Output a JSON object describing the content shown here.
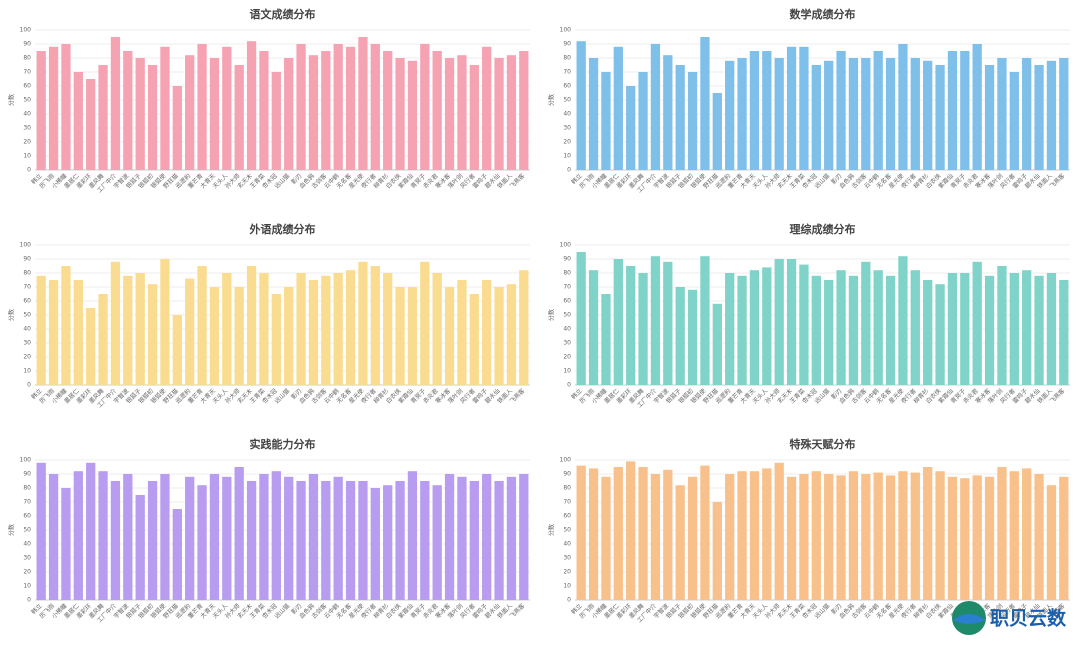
{
  "chart_data": [
    {
      "type": "bar",
      "title": "语文成绩分布",
      "y_label": "分数",
      "color": "#f5a3b3",
      "ylim": [
        0,
        100
      ],
      "yticks": [
        0,
        10,
        20,
        30,
        40,
        50,
        60,
        70,
        80,
        90,
        100
      ],
      "grid": true,
      "categories": [
        "韩立",
        "厉飞雨",
        "小稀瞳",
        "墨居仁",
        "墨彩环",
        "墨凤舞",
        "工厂中介",
        "宇智波",
        "银狐子",
        "银狐初",
        "银狐使",
        "野狂猫",
        "巡逻豹",
        "董芒青",
        "大青天",
        "天头人",
        "孙大师",
        "玄天木",
        "王青菜",
        "杏木冠",
        "远山猫",
        "影刃",
        "血色鸦",
        "古剑客",
        "云中鹤",
        "无名客",
        "星光使",
        "夜行者",
        "柳青衫",
        "白衣侠",
        "紫霞仙",
        "青冥子",
        "赤炎君",
        "寒冰客",
        "落叶剑",
        "风行者",
        "雷鸣子",
        "碧水仙",
        "铁面人",
        "飞燕客"
      ],
      "values": [
        85,
        88,
        90,
        70,
        65,
        75,
        95,
        85,
        80,
        75,
        88,
        60,
        82,
        90,
        80,
        88,
        75,
        92,
        85,
        70,
        80,
        90,
        82,
        85,
        90,
        88,
        95,
        90,
        85,
        80,
        78,
        90,
        85,
        80,
        82,
        75,
        88,
        80,
        82,
        85
      ]
    },
    {
      "type": "bar",
      "title": "数学成绩分布",
      "y_label": "分数",
      "color": "#7fc0ea",
      "ylim": [
        0,
        100
      ],
      "yticks": [
        0,
        10,
        20,
        30,
        40,
        50,
        60,
        70,
        80,
        90,
        100
      ],
      "grid": true,
      "categories": [
        "韩立",
        "厉飞雨",
        "小稀瞳",
        "墨居仁",
        "墨彩环",
        "墨凤舞",
        "工厂中介",
        "宇智波",
        "银狐子",
        "银狐初",
        "银狐使",
        "野狂猫",
        "巡逻豹",
        "董芒青",
        "大青天",
        "天头人",
        "孙大师",
        "玄天木",
        "王青菜",
        "杏木冠",
        "远山猫",
        "影刃",
        "血色鸦",
        "古剑客",
        "云中鹤",
        "无名客",
        "星光使",
        "夜行者",
        "柳青衫",
        "白衣侠",
        "紫霞仙",
        "青冥子",
        "赤炎君",
        "寒冰客",
        "落叶剑",
        "风行者",
        "雷鸣子",
        "碧水仙",
        "铁面人",
        "飞燕客"
      ],
      "values": [
        92,
        80,
        70,
        88,
        60,
        70,
        90,
        82,
        75,
        70,
        95,
        55,
        78,
        80,
        85,
        85,
        80,
        88,
        88,
        75,
        78,
        85,
        80,
        80,
        85,
        80,
        90,
        80,
        78,
        75,
        85,
        85,
        90,
        75,
        80,
        70,
        80,
        75,
        78,
        80
      ]
    },
    {
      "type": "bar",
      "title": "外语成绩分布",
      "y_label": "分数",
      "color": "#f9dc8f",
      "ylim": [
        0,
        100
      ],
      "yticks": [
        0,
        10,
        20,
        30,
        40,
        50,
        60,
        70,
        80,
        90,
        100
      ],
      "grid": true,
      "categories": [
        "韩立",
        "厉飞雨",
        "小稀瞳",
        "墨居仁",
        "墨彩环",
        "墨凤舞",
        "工厂中介",
        "宇智波",
        "银狐子",
        "银狐初",
        "银狐使",
        "野狂猫",
        "巡逻豹",
        "董芒青",
        "大青天",
        "天头人",
        "孙大师",
        "玄天木",
        "王青菜",
        "杏木冠",
        "远山猫",
        "影刃",
        "血色鸦",
        "古剑客",
        "云中鹤",
        "无名客",
        "星光使",
        "夜行者",
        "柳青衫",
        "白衣侠",
        "紫霞仙",
        "青冥子",
        "赤炎君",
        "寒冰客",
        "落叶剑",
        "风行者",
        "雷鸣子",
        "碧水仙",
        "铁面人",
        "飞燕客"
      ],
      "values": [
        78,
        75,
        85,
        75,
        55,
        65,
        88,
        78,
        80,
        72,
        90,
        50,
        76,
        85,
        70,
        80,
        70,
        85,
        80,
        65,
        70,
        80,
        75,
        78,
        80,
        82,
        88,
        85,
        80,
        70,
        70,
        88,
        80,
        70,
        75,
        65,
        75,
        70,
        72,
        82
      ]
    },
    {
      "type": "bar",
      "title": "理综成绩分布",
      "y_label": "分数",
      "color": "#80d3c9",
      "ylim": [
        0,
        100
      ],
      "yticks": [
        0,
        10,
        20,
        30,
        40,
        50,
        60,
        70,
        80,
        90,
        100
      ],
      "grid": true,
      "categories": [
        "韩立",
        "厉飞雨",
        "小稀瞳",
        "墨居仁",
        "墨彩环",
        "墨凤舞",
        "工厂中介",
        "宇智波",
        "银狐子",
        "银狐初",
        "银狐使",
        "野狂猫",
        "巡逻豹",
        "董芒青",
        "大青天",
        "天头人",
        "孙大师",
        "玄天木",
        "王青菜",
        "杏木冠",
        "远山猫",
        "影刃",
        "血色鸦",
        "古剑客",
        "云中鹤",
        "无名客",
        "星光使",
        "夜行者",
        "柳青衫",
        "白衣侠",
        "紫霞仙",
        "青冥子",
        "赤炎君",
        "寒冰客",
        "落叶剑",
        "风行者",
        "雷鸣子",
        "碧水仙",
        "铁面人",
        "飞燕客"
      ],
      "values": [
        95,
        82,
        65,
        90,
        85,
        80,
        92,
        88,
        70,
        68,
        92,
        58,
        80,
        78,
        82,
        84,
        90,
        90,
        86,
        78,
        75,
        82,
        78,
        88,
        82,
        78,
        92,
        82,
        75,
        72,
        80,
        80,
        88,
        78,
        85,
        80,
        82,
        78,
        80,
        75
      ]
    },
    {
      "type": "bar",
      "title": "实践能力分布",
      "y_label": "分数",
      "color": "#b89cf0",
      "ylim": [
        0,
        100
      ],
      "yticks": [
        0,
        10,
        20,
        30,
        40,
        50,
        60,
        70,
        80,
        90,
        100
      ],
      "grid": true,
      "categories": [
        "韩立",
        "厉飞雨",
        "小稀瞳",
        "墨居仁",
        "墨彩环",
        "墨凤舞",
        "工厂中介",
        "宇智波",
        "银狐子",
        "银狐初",
        "银狐使",
        "野狂猫",
        "巡逻豹",
        "董芒青",
        "大青天",
        "天头人",
        "孙大师",
        "玄天木",
        "王青菜",
        "杏木冠",
        "远山猫",
        "影刃",
        "血色鸦",
        "古剑客",
        "云中鹤",
        "无名客",
        "星光使",
        "夜行者",
        "柳青衫",
        "白衣侠",
        "紫霞仙",
        "青冥子",
        "赤炎君",
        "寒冰客",
        "落叶剑",
        "风行者",
        "雷鸣子",
        "碧水仙",
        "铁面人",
        "飞燕客"
      ],
      "values": [
        98,
        90,
        80,
        92,
        98,
        92,
        85,
        90,
        75,
        85,
        90,
        65,
        88,
        82,
        90,
        88,
        95,
        85,
        90,
        92,
        88,
        85,
        90,
        85,
        88,
        85,
        85,
        80,
        82,
        85,
        92,
        85,
        82,
        90,
        88,
        85,
        90,
        85,
        88,
        90
      ]
    },
    {
      "type": "bar",
      "title": "特殊天赋分布",
      "y_label": "分数",
      "color": "#f8c18b",
      "ylim": [
        0,
        100
      ],
      "yticks": [
        0,
        10,
        20,
        30,
        40,
        50,
        60,
        70,
        80,
        90,
        100
      ],
      "grid": true,
      "categories": [
        "韩立",
        "厉飞雨",
        "小稀瞳",
        "墨居仁",
        "墨彩环",
        "墨凤舞",
        "工厂中介",
        "宇智波",
        "银狐子",
        "银狐初",
        "银狐使",
        "野狂猫",
        "巡逻豹",
        "董芒青",
        "大青天",
        "天头人",
        "孙大师",
        "玄天木",
        "王青菜",
        "杏木冠",
        "远山猫",
        "影刃",
        "血色鸦",
        "古剑客",
        "云中鹤",
        "无名客",
        "星光使",
        "夜行者",
        "柳青衫",
        "白衣侠",
        "紫霞仙",
        "青冥子",
        "赤炎君",
        "寒冰客",
        "落叶剑",
        "风行者",
        "雷鸣子",
        "碧水仙",
        "铁面人",
        "飞燕客"
      ],
      "values": [
        96,
        94,
        88,
        95,
        99,
        95,
        90,
        93,
        82,
        88,
        96,
        70,
        90,
        92,
        92,
        94,
        98,
        88,
        90,
        92,
        90,
        89,
        92,
        90,
        91,
        89,
        92,
        91,
        95,
        92,
        88,
        87,
        89,
        88,
        95,
        92,
        94,
        90,
        82,
        88
      ]
    }
  ],
  "logo": "职贝云数"
}
